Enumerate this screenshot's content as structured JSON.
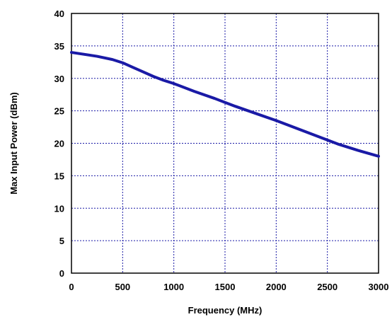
{
  "chart_data": {
    "type": "line",
    "title": "",
    "xlabel": "Frequency (MHz)",
    "ylabel": "Max Input Power (dBm)",
    "xlim": [
      0,
      3000
    ],
    "ylim": [
      0,
      40
    ],
    "x_ticks": [
      0,
      500,
      1000,
      1500,
      2000,
      2500,
      3000
    ],
    "y_ticks": [
      0,
      5,
      10,
      15,
      20,
      25,
      30,
      35,
      40
    ],
    "grid": true,
    "legend": "none",
    "colors": {
      "line": "#1a1aa6",
      "grid": "#1a1aa6",
      "axes": "#000000"
    },
    "series": [
      {
        "x": [
          0,
          250,
          400,
          500,
          600,
          700,
          800,
          900,
          1000,
          1200,
          1400,
          1500,
          1600,
          1800,
          2000,
          2200,
          2400,
          2500,
          2600,
          2800,
          3000
        ],
        "y": [
          34,
          33.4,
          32.9,
          32.4,
          31.7,
          31,
          30.3,
          29.7,
          29.2,
          28,
          26.9,
          26.3,
          25.7,
          24.6,
          23.5,
          22.3,
          21.1,
          20.5,
          19.9,
          18.9,
          18
        ]
      }
    ]
  }
}
